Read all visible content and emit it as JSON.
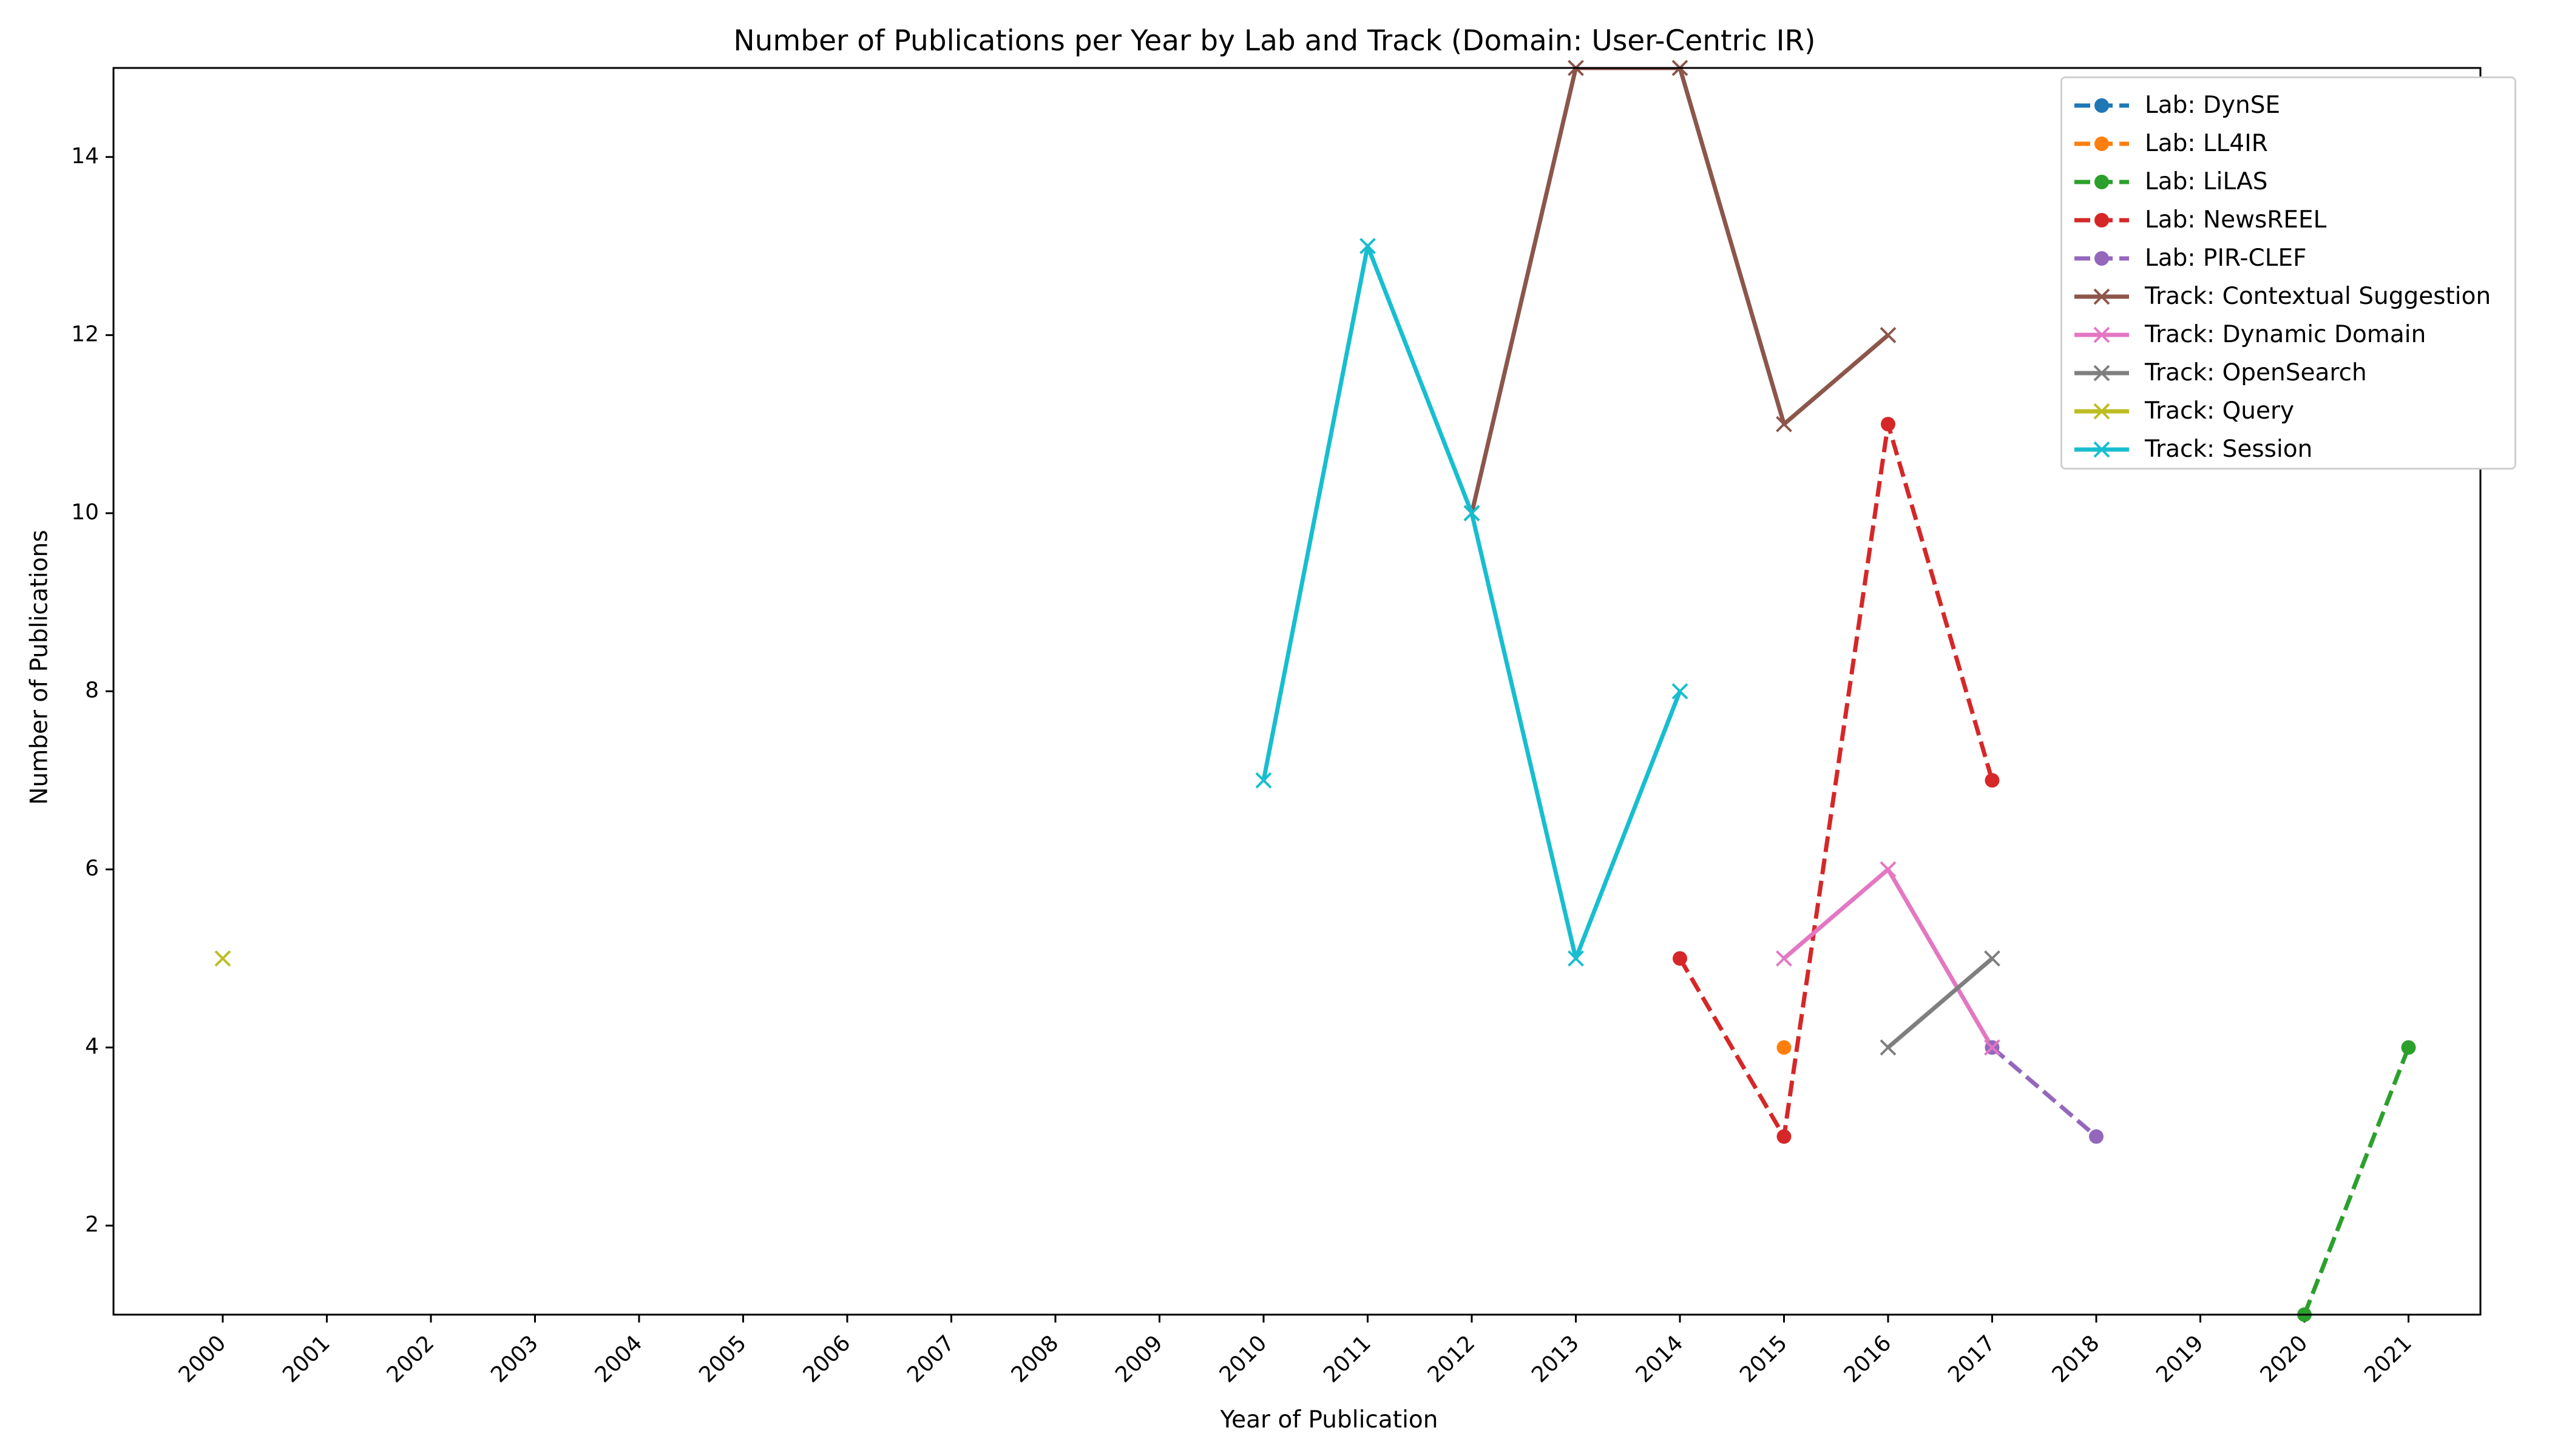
{
  "chart_data": {
    "type": "line",
    "title": "Number of Publications per Year by Lab and Track (Domain: User-Centric IR)",
    "xlabel": "Year of Publication",
    "ylabel": "Number of Publications",
    "categories": [
      "2000",
      "2001",
      "2002",
      "2003",
      "2004",
      "2005",
      "2006",
      "2007",
      "2008",
      "2009",
      "2010",
      "2011",
      "2012",
      "2013",
      "2014",
      "2015",
      "2016",
      "2017",
      "2018",
      "2019",
      "2020",
      "2021"
    ],
    "ylim": [
      1,
      15
    ],
    "yticks": [
      2,
      4,
      6,
      8,
      10,
      12,
      14
    ],
    "grid": false,
    "legend_position": "top-right",
    "series": [
      {
        "name": "Lab: DynSE",
        "color": "#1f77b4",
        "style": "dashed",
        "marker": "circle",
        "points": []
      },
      {
        "name": "Lab: LL4IR",
        "color": "#ff7f0e",
        "style": "dashed",
        "marker": "circle",
        "points": [
          {
            "x": "2015",
            "y": 4
          }
        ]
      },
      {
        "name": "Lab: LiLAS",
        "color": "#2ca02c",
        "style": "dashed",
        "marker": "circle",
        "points": [
          {
            "x": "2020",
            "y": 1
          },
          {
            "x": "2021",
            "y": 4
          }
        ]
      },
      {
        "name": "Lab: NewsREEL",
        "color": "#d62728",
        "style": "dashed",
        "marker": "circle",
        "points": [
          {
            "x": "2014",
            "y": 5
          },
          {
            "x": "2015",
            "y": 3
          },
          {
            "x": "2016",
            "y": 11
          },
          {
            "x": "2017",
            "y": 7
          }
        ]
      },
      {
        "name": "Lab: PIR-CLEF",
        "color": "#9467bd",
        "style": "dashed",
        "marker": "circle",
        "points": [
          {
            "x": "2017",
            "y": 4
          },
          {
            "x": "2018",
            "y": 3
          }
        ]
      },
      {
        "name": "Track: Contextual Suggestion",
        "color": "#8c564b",
        "style": "solid",
        "marker": "x",
        "points": [
          {
            "x": "2012",
            "y": 10
          },
          {
            "x": "2013",
            "y": 15
          },
          {
            "x": "2014",
            "y": 15
          },
          {
            "x": "2015",
            "y": 11
          },
          {
            "x": "2016",
            "y": 12
          }
        ]
      },
      {
        "name": "Track: Dynamic Domain",
        "color": "#e377c2",
        "style": "solid",
        "marker": "x",
        "points": [
          {
            "x": "2015",
            "y": 5
          },
          {
            "x": "2016",
            "y": 6
          },
          {
            "x": "2017",
            "y": 4
          }
        ]
      },
      {
        "name": "Track: OpenSearch",
        "color": "#7f7f7f",
        "style": "solid",
        "marker": "x",
        "points": [
          {
            "x": "2016",
            "y": 4
          },
          {
            "x": "2017",
            "y": 5
          }
        ]
      },
      {
        "name": "Track: Query",
        "color": "#bcbd22",
        "style": "solid",
        "marker": "x",
        "points": [
          {
            "x": "2000",
            "y": 5
          }
        ]
      },
      {
        "name": "Track: Session",
        "color": "#17becf",
        "style": "solid",
        "marker": "x",
        "points": [
          {
            "x": "2010",
            "y": 7
          },
          {
            "x": "2011",
            "y": 13
          },
          {
            "x": "2012",
            "y": 10
          },
          {
            "x": "2013",
            "y": 5
          },
          {
            "x": "2014",
            "y": 8
          }
        ]
      }
    ]
  }
}
